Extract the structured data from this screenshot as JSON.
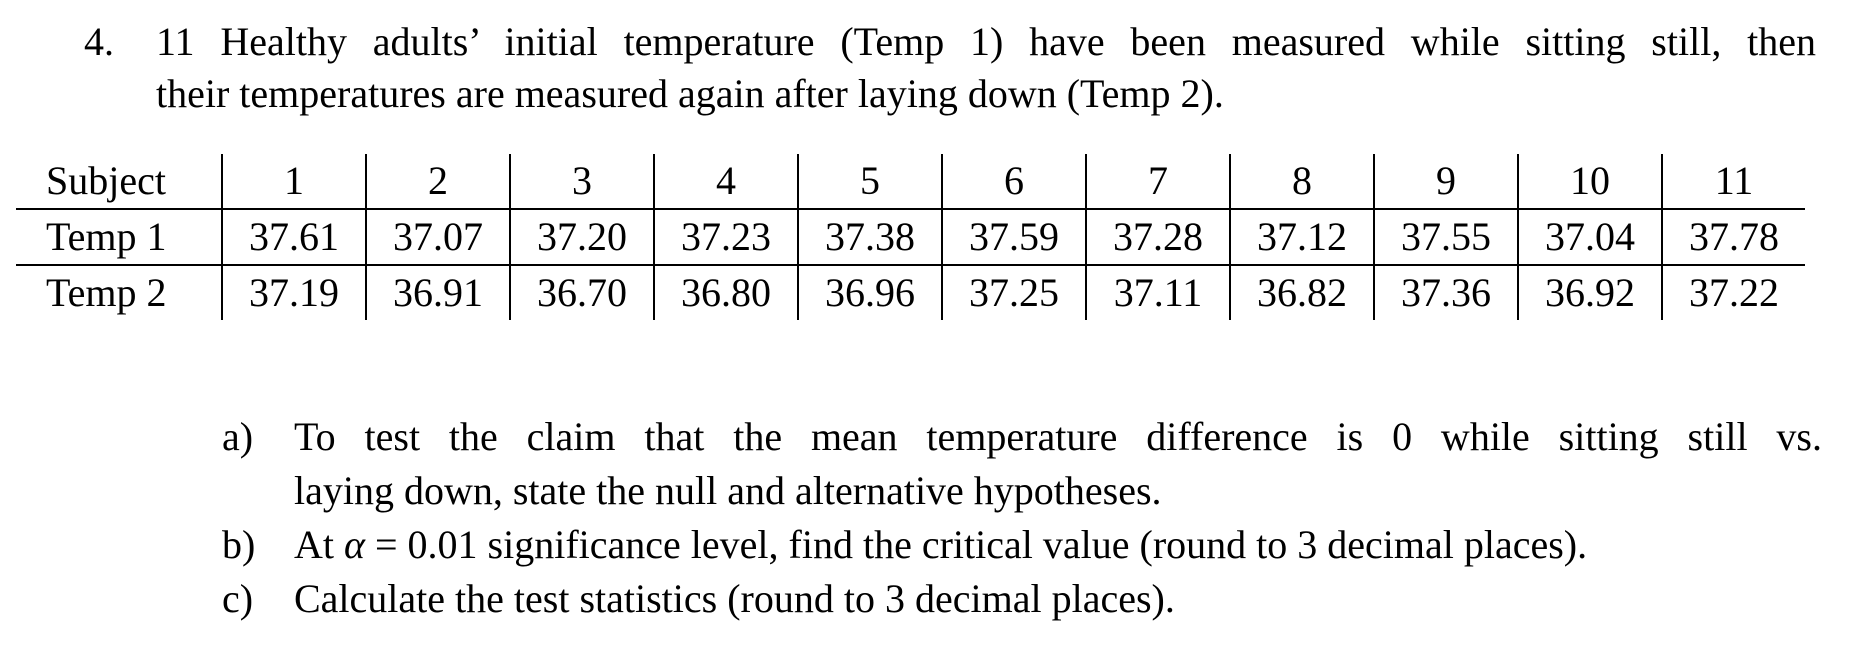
{
  "problem": {
    "number": "4.",
    "stem_line1": "11 Healthy adults’ initial temperature (Temp 1) have been measured while sitting still, then",
    "stem_line2": "their temperatures are measured again after laying down (Temp 2)."
  },
  "table": {
    "header_label": "Subject",
    "subjects": [
      "1",
      "2",
      "3",
      "4",
      "5",
      "6",
      "7",
      "8",
      "9",
      "10",
      "11"
    ],
    "rows": [
      {
        "label": "Temp 1",
        "values": [
          "37.61",
          "37.07",
          "37.20",
          "37.23",
          "37.38",
          "37.59",
          "37.28",
          "37.12",
          "37.55",
          "37.04",
          "37.78"
        ]
      },
      {
        "label": "Temp 2",
        "values": [
          "37.19",
          "36.91",
          "36.70",
          "36.80",
          "36.96",
          "37.25",
          "37.11",
          "36.82",
          "37.36",
          "36.92",
          "37.22"
        ]
      }
    ]
  },
  "parts": {
    "a": {
      "letter": "a)",
      "line1": "To test the claim that the mean temperature difference is 0 while sitting still vs.",
      "line2": "laying down, state the null and alternative hypotheses."
    },
    "b": {
      "letter": "b)",
      "prefix": "At",
      "alpha": "α",
      "rest": "= 0.01 significance level, find the critical value (round to 3 decimal places)."
    },
    "c": {
      "letter": "c)",
      "text": "Calculate the test statistics (round to 3 decimal places)."
    }
  }
}
